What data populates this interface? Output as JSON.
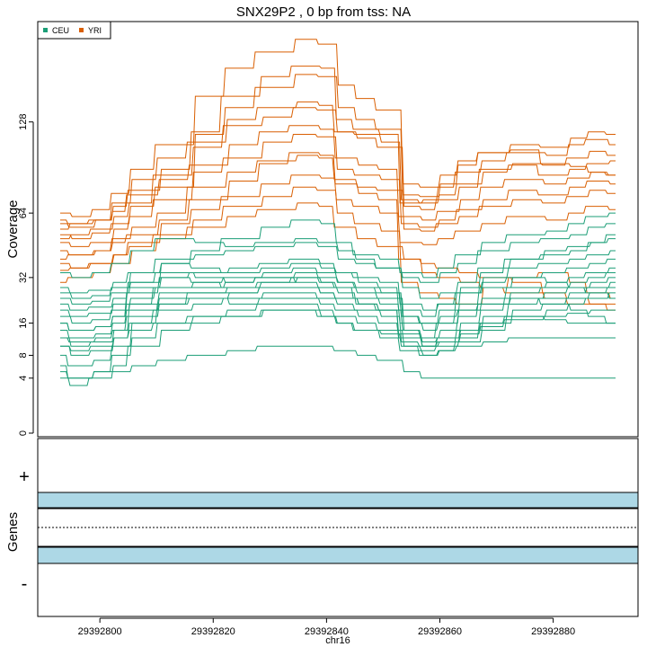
{
  "chart_data": {
    "type": "line",
    "title": "SNX29P2 , 0 bp from tss: NA",
    "coverage_panel": {
      "ylabel": "Coverage",
      "y_scale": "sqrt",
      "y_ticks": [
        0,
        4,
        8,
        16,
        32,
        64,
        128
      ],
      "ylim": [
        0,
        220
      ],
      "x_range": [
        29392793,
        29392891
      ],
      "legend": {
        "position": "top-left",
        "entries": [
          {
            "name": "CEU",
            "color": "#1b9e77"
          },
          {
            "name": "YRI",
            "color": "#d95f02"
          }
        ]
      },
      "x_samples": [
        29392793,
        29392796,
        29392801,
        29392803,
        29392807,
        29392813,
        29392819,
        29392825,
        29392831,
        29392837,
        29392840,
        29392843,
        29392847,
        29392851,
        29392855,
        29392858,
        29392861,
        29392865,
        29392869,
        29392875,
        29392881,
        29392884,
        29392888,
        29392891
      ],
      "series": [
        {
          "group": "YRI",
          "values": [
            50,
            52,
            55,
            62,
            70,
            88,
            108,
            125,
            132,
            140,
            138,
            120,
            118,
            112,
            72,
            70,
            75,
            82,
            90,
            95,
            88,
            92,
            96,
            98
          ]
        },
        {
          "group": "YRI",
          "values": [
            60,
            58,
            60,
            70,
            85,
            100,
            112,
            130,
            140,
            145,
            142,
            120,
            115,
            108,
            68,
            66,
            72,
            80,
            92,
            96,
            95,
            100,
            105,
            102
          ]
        },
        {
          "group": "YRI",
          "values": [
            55,
            58,
            60,
            68,
            78,
            92,
            120,
            150,
            168,
            178,
            176,
            130,
            122,
            118,
            70,
            72,
            80,
            90,
            98,
            104,
            102,
            110,
            114,
            110
          ]
        },
        {
          "group": "YRI",
          "values": [
            52,
            50,
            53,
            58,
            68,
            80,
            118,
            140,
            158,
            170,
            168,
            140,
            130,
            122,
            75,
            74,
            82,
            95,
            104,
            110,
            108,
            115,
            120,
            118
          ]
        },
        {
          "group": "YRI",
          "values": [
            58,
            56,
            60,
            65,
            75,
            85,
            95,
            110,
            120,
            125,
            122,
            100,
            95,
            92,
            62,
            60,
            65,
            72,
            80,
            85,
            82,
            86,
            90,
            88
          ]
        },
        {
          "group": "YRI",
          "values": [
            48,
            46,
            48,
            55,
            62,
            72,
            90,
            100,
            112,
            118,
            116,
            92,
            88,
            85,
            58,
            56,
            60,
            66,
            72,
            78,
            75,
            80,
            84,
            82
          ]
        },
        {
          "group": "YRI",
          "values": [
            40,
            42,
            44,
            50,
            56,
            64,
            80,
            90,
            98,
            102,
            100,
            85,
            80,
            78,
            55,
            54,
            58,
            62,
            68,
            72,
            70,
            74,
            78,
            76
          ]
        },
        {
          "group": "YRI",
          "values": [
            35,
            36,
            38,
            42,
            48,
            58,
            66,
            74,
            82,
            88,
            86,
            72,
            68,
            64,
            48,
            47,
            50,
            54,
            58,
            62,
            60,
            64,
            68,
            66
          ]
        },
        {
          "group": "YRI",
          "values": [
            64,
            62,
            66,
            76,
            92,
            110,
            150,
            176,
            192,
            205,
            200,
            160,
            148,
            138,
            82,
            80,
            88,
            98,
            104,
            106,
            96,
            94,
            90,
            88
          ]
        },
        {
          "group": "YRI",
          "values": [
            44,
            42,
            44,
            48,
            52,
            60,
            72,
            84,
            96,
            104,
            102,
            82,
            76,
            72,
            40,
            34,
            32,
            30,
            28,
            26,
            24,
            22,
            22,
            22
          ]
        },
        {
          "group": "YRI",
          "values": [
            38,
            36,
            38,
            42,
            46,
            52,
            60,
            68,
            74,
            80,
            78,
            64,
            58,
            54,
            30,
            26,
            24,
            22,
            28,
            32,
            34,
            30,
            26,
            24
          ]
        },
        {
          "group": "YRI",
          "values": [
            30,
            32,
            34,
            38,
            44,
            50,
            56,
            62,
            66,
            70,
            68,
            56,
            50,
            46,
            40,
            38,
            36,
            34,
            32,
            30,
            26,
            24,
            22,
            20
          ]
        },
        {
          "group": "CEU",
          "values": [
            20,
            18,
            19,
            22,
            30,
            38,
            44,
            50,
            56,
            60,
            58,
            48,
            42,
            40,
            34,
            32,
            36,
            42,
            48,
            52,
            54,
            58,
            62,
            64
          ]
        },
        {
          "group": "CEU",
          "values": [
            26,
            24,
            25,
            28,
            34,
            40,
            42,
            44,
            46,
            48,
            46,
            40,
            38,
            36,
            32,
            30,
            34,
            38,
            44,
            48,
            50,
            52,
            56,
            58
          ]
        },
        {
          "group": "CEU",
          "values": [
            16,
            14,
            15,
            18,
            26,
            32,
            34,
            36,
            38,
            40,
            38,
            34,
            30,
            28,
            20,
            18,
            22,
            28,
            34,
            40,
            44,
            46,
            48,
            50
          ]
        },
        {
          "group": "CEU",
          "values": [
            12,
            10,
            11,
            14,
            22,
            28,
            30,
            32,
            34,
            36,
            34,
            30,
            28,
            26,
            18,
            16,
            20,
            26,
            32,
            36,
            38,
            40,
            42,
            44
          ]
        },
        {
          "group": "CEU",
          "values": [
            8,
            6,
            7,
            10,
            16,
            22,
            26,
            28,
            30,
            32,
            30,
            28,
            26,
            24,
            14,
            12,
            16,
            22,
            28,
            32,
            34,
            36,
            38,
            40
          ]
        },
        {
          "group": "CEU",
          "values": [
            22,
            20,
            21,
            24,
            28,
            32,
            30,
            28,
            30,
            32,
            30,
            28,
            24,
            22,
            16,
            14,
            16,
            20,
            24,
            28,
            30,
            32,
            34,
            36
          ]
        },
        {
          "group": "CEU",
          "values": [
            18,
            16,
            17,
            20,
            24,
            28,
            28,
            30,
            32,
            30,
            28,
            26,
            22,
            20,
            14,
            12,
            14,
            18,
            22,
            26,
            28,
            30,
            32,
            34
          ]
        },
        {
          "group": "CEU",
          "values": [
            14,
            12,
            13,
            16,
            20,
            24,
            24,
            26,
            28,
            28,
            26,
            24,
            22,
            20,
            12,
            10,
            12,
            16,
            20,
            24,
            26,
            28,
            30,
            32
          ]
        },
        {
          "group": "CEU",
          "values": [
            10,
            8,
            9,
            12,
            16,
            20,
            22,
            24,
            26,
            26,
            24,
            22,
            20,
            18,
            11,
            10,
            11,
            14,
            18,
            22,
            24,
            26,
            28,
            30
          ]
        },
        {
          "group": "CEU",
          "values": [
            6,
            4,
            5,
            8,
            12,
            16,
            18,
            20,
            22,
            22,
            20,
            18,
            16,
            14,
            10,
            9,
            10,
            12,
            16,
            20,
            22,
            24,
            26,
            28
          ]
        },
        {
          "group": "CEU",
          "values": [
            4,
            3,
            4,
            6,
            10,
            14,
            16,
            18,
            20,
            20,
            18,
            16,
            14,
            12,
            9,
            8,
            9,
            11,
            14,
            18,
            20,
            22,
            24,
            26
          ]
        },
        {
          "group": "CEU",
          "values": [
            24,
            22,
            23,
            26,
            30,
            34,
            32,
            30,
            32,
            34,
            32,
            30,
            28,
            26,
            18,
            16,
            18,
            20,
            22,
            24,
            22,
            20,
            18,
            16
          ]
        },
        {
          "group": "CEU",
          "values": [
            16,
            14,
            15,
            18,
            22,
            26,
            26,
            26,
            28,
            28,
            26,
            24,
            22,
            20,
            13,
            11,
            12,
            14,
            16,
            18,
            17,
            16,
            16,
            16
          ]
        },
        {
          "group": "CEU",
          "values": [
            10,
            9,
            10,
            12,
            14,
            16,
            18,
            18,
            20,
            20,
            18,
            16,
            14,
            13,
            10,
            8,
            9,
            10,
            11,
            12,
            12,
            12,
            12,
            12
          ]
        },
        {
          "group": "CEU",
          "values": [
            5,
            4,
            5,
            5,
            6,
            7,
            8,
            9,
            10,
            10,
            10,
            9,
            8,
            7,
            5,
            4,
            4,
            4,
            4,
            4,
            4,
            4,
            4,
            4
          ]
        },
        {
          "group": "CEU",
          "values": [
            28,
            26,
            27,
            30,
            34,
            38,
            36,
            34,
            36,
            38,
            36,
            34,
            32,
            30,
            22,
            20,
            22,
            26,
            30,
            32,
            30,
            28,
            26,
            24
          ]
        },
        {
          "group": "CEU",
          "values": [
            34,
            32,
            34,
            38,
            44,
            50,
            48,
            46,
            48,
            50,
            48,
            44,
            40,
            36,
            28,
            24,
            26,
            30,
            36,
            40,
            42,
            44,
            48,
            52
          ]
        },
        {
          "group": "CEU",
          "values": [
            12,
            11,
            12,
            14,
            18,
            22,
            24,
            22,
            24,
            24,
            22,
            20,
            18,
            16,
            12,
            10,
            11,
            13,
            15,
            17,
            18,
            19,
            20,
            20
          ]
        }
      ]
    },
    "genes_panel": {
      "ylabel": "Genes",
      "strand_plus_label": "+",
      "strand_minus_label": "-",
      "track_color": "#add8e6"
    },
    "x_axis": {
      "xlabel": "chr16",
      "ticks": [
        29392800,
        29392820,
        29392840,
        29392860,
        29392880
      ],
      "tick_labels": [
        "29392800",
        "29392820",
        "29392840",
        "29392860",
        "29392880"
      ]
    }
  }
}
